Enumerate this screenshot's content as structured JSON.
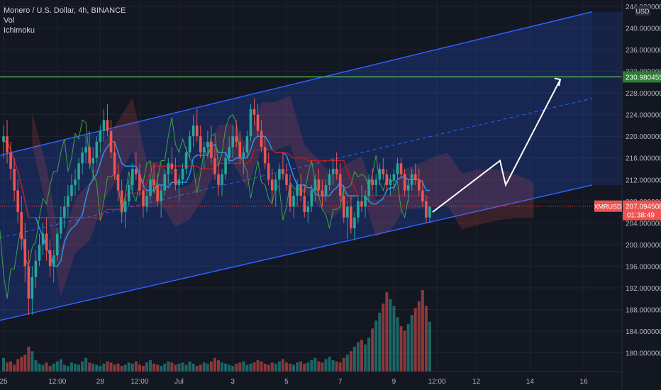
{
  "legend": {
    "symbol_line": "Monero / U.S. Dollar, 4h, BINANCE",
    "indicator_1": "Vol",
    "indicator_2": "Ichimoku"
  },
  "price_badges": {
    "currency": "USD",
    "target_price": "230.980455",
    "ticker": "XMRUSD",
    "last_price": "207.094508",
    "countdown": "01:38:49"
  },
  "colors": {
    "background": "#131722",
    "bull": "#26a69a",
    "bear": "#ef5350",
    "channel_line": "#2962ff",
    "target_line": "#4caf50",
    "tenkan": "#2196f3",
    "kijun": "#b71c1c",
    "chikou": "#43a047",
    "arrow": "#ffffff"
  },
  "chart_data": {
    "type": "candlestick",
    "y_ticks": [
      "180.000000",
      "184.000000",
      "188.000000",
      "192.000000",
      "196.000000",
      "200.000000",
      "204.000000",
      "208.000000",
      "212.000000",
      "216.000000",
      "220.000000",
      "224.000000",
      "228.000000",
      "232.000000",
      "236.000000",
      "240.000000",
      "244.000000"
    ],
    "x_ticks": [
      {
        "label": "25",
        "bar": 0
      },
      {
        "label": "12:00",
        "bar": 15
      },
      {
        "label": "28",
        "bar": 27
      },
      {
        "label": "12:00",
        "bar": 38
      },
      {
        "label": "Jul",
        "bar": 49
      },
      {
        "label": "3",
        "bar": 64
      },
      {
        "label": "5",
        "bar": 79
      },
      {
        "label": "7",
        "bar": 94
      },
      {
        "label": "9",
        "bar": 109
      },
      {
        "label": "12:00",
        "bar": 121
      },
      {
        "label": "12",
        "bar": 132
      },
      {
        "label": "14",
        "bar": 147
      },
      {
        "label": "16",
        "bar": 162
      },
      {
        "label": "18",
        "bar": 177
      }
    ],
    "bars_total_visible": 181,
    "candles": [
      [
        219,
        222,
        216,
        220
      ],
      [
        220,
        223,
        215,
        217
      ],
      [
        217,
        219,
        212,
        214
      ],
      [
        214,
        216,
        208,
        210
      ],
      [
        210,
        212,
        204,
        206
      ],
      [
        206,
        209,
        199,
        201
      ],
      [
        201,
        204,
        193,
        196
      ],
      [
        196,
        199,
        187,
        190
      ],
      [
        190,
        196,
        187,
        194
      ],
      [
        194,
        199,
        192,
        197
      ],
      [
        197,
        202,
        196,
        200
      ],
      [
        200,
        204,
        198,
        202
      ],
      [
        202,
        205,
        197,
        199
      ],
      [
        199,
        201,
        194,
        196
      ],
      [
        196,
        199,
        193,
        198
      ],
      [
        198,
        203,
        197,
        202
      ],
      [
        202,
        207,
        201,
        205
      ],
      [
        205,
        209,
        203,
        207
      ],
      [
        207,
        211,
        205,
        209
      ],
      [
        209,
        213,
        208,
        211
      ],
      [
        211,
        214,
        209,
        212
      ],
      [
        212,
        216,
        210,
        215
      ],
      [
        215,
        218,
        213,
        217
      ],
      [
        217,
        220,
        215,
        218
      ],
      [
        218,
        221,
        214,
        215
      ],
      [
        215,
        218,
        212,
        216
      ],
      [
        216,
        220,
        215,
        219
      ],
      [
        219,
        222,
        217,
        221
      ],
      [
        221,
        225,
        219,
        223
      ],
      [
        223,
        226,
        220,
        221
      ],
      [
        221,
        223,
        216,
        217
      ],
      [
        217,
        219,
        212,
        213
      ],
      [
        213,
        215,
        208,
        210
      ],
      [
        210,
        212,
        204,
        206
      ],
      [
        206,
        209,
        203,
        208
      ],
      [
        208,
        212,
        207,
        211
      ],
      [
        211,
        215,
        210,
        214
      ],
      [
        214,
        217,
        212,
        213
      ],
      [
        213,
        215,
        209,
        210
      ],
      [
        210,
        212,
        205,
        207
      ],
      [
        207,
        210,
        206,
        209
      ],
      [
        209,
        213,
        208,
        212
      ],
      [
        212,
        215,
        210,
        211
      ],
      [
        211,
        213,
        207,
        208
      ],
      [
        208,
        211,
        205,
        210
      ],
      [
        210,
        214,
        209,
        213
      ],
      [
        213,
        216,
        211,
        215
      ],
      [
        215,
        218,
        213,
        214
      ],
      [
        214,
        216,
        210,
        211
      ],
      [
        211,
        213,
        208,
        212
      ],
      [
        212,
        215,
        211,
        214
      ],
      [
        214,
        218,
        213,
        217
      ],
      [
        217,
        221,
        216,
        220
      ],
      [
        220,
        224,
        218,
        222
      ],
      [
        222,
        225,
        219,
        220
      ],
      [
        220,
        222,
        216,
        217
      ],
      [
        217,
        219,
        214,
        218
      ],
      [
        218,
        221,
        216,
        219
      ],
      [
        219,
        222,
        215,
        216
      ],
      [
        216,
        218,
        212,
        213
      ],
      [
        213,
        215,
        209,
        211
      ],
      [
        211,
        214,
        209,
        213
      ],
      [
        213,
        217,
        212,
        216
      ],
      [
        216,
        220,
        215,
        218
      ],
      [
        218,
        222,
        216,
        220
      ],
      [
        220,
        223,
        218,
        219
      ],
      [
        219,
        221,
        215,
        216
      ],
      [
        216,
        218,
        213,
        217
      ],
      [
        217,
        221,
        216,
        220
      ],
      [
        220,
        226,
        219,
        225
      ],
      [
        225,
        227,
        222,
        224
      ],
      [
        224,
        226,
        220,
        221
      ],
      [
        221,
        223,
        217,
        218
      ],
      [
        218,
        220,
        214,
        215
      ],
      [
        215,
        217,
        211,
        212
      ],
      [
        212,
        214,
        208,
        210
      ],
      [
        210,
        213,
        207,
        212
      ],
      [
        212,
        215,
        210,
        214
      ],
      [
        214,
        217,
        212,
        213
      ],
      [
        213,
        215,
        210,
        211
      ],
      [
        211,
        213,
        206,
        207
      ],
      [
        207,
        210,
        205,
        209
      ],
      [
        209,
        212,
        207,
        211
      ],
      [
        211,
        213,
        208,
        209
      ],
      [
        209,
        211,
        205,
        206
      ],
      [
        206,
        208,
        204,
        207
      ],
      [
        207,
        211,
        206,
        210
      ],
      [
        210,
        213,
        208,
        212
      ],
      [
        212,
        214,
        209,
        210
      ],
      [
        210,
        212,
        207,
        209
      ],
      [
        209,
        212,
        208,
        211
      ],
      [
        211,
        214,
        210,
        213
      ],
      [
        213,
        216,
        211,
        214
      ],
      [
        214,
        217,
        212,
        213
      ],
      [
        213,
        215,
        208,
        209
      ],
      [
        209,
        211,
        204,
        205
      ],
      [
        205,
        208,
        201,
        207
      ],
      [
        207,
        209,
        202,
        203
      ],
      [
        203,
        206,
        201,
        205
      ],
      [
        205,
        209,
        204,
        208
      ],
      [
        208,
        211,
        206,
        207
      ],
      [
        207,
        210,
        205,
        209
      ],
      [
        209,
        213,
        208,
        212
      ],
      [
        212,
        214,
        210,
        211
      ],
      [
        211,
        213,
        209,
        212
      ],
      [
        212,
        215,
        211,
        214
      ],
      [
        214,
        216,
        212,
        213
      ],
      [
        213,
        214,
        210,
        211
      ],
      [
        211,
        213,
        209,
        212
      ],
      [
        212,
        214,
        210,
        213
      ],
      [
        213,
        216,
        212,
        215
      ],
      [
        215,
        216,
        212,
        213
      ],
      [
        213,
        214,
        209,
        210
      ],
      [
        210,
        212,
        208,
        211
      ],
      [
        211,
        214,
        210,
        213
      ],
      [
        213,
        215,
        211,
        212
      ],
      [
        212,
        214,
        209,
        210
      ],
      [
        210,
        212,
        207,
        208
      ],
      [
        208,
        209,
        204,
        205
      ],
      [
        205,
        207,
        204,
        207
      ]
    ],
    "volume": [
      12,
      8,
      9,
      6,
      11,
      13,
      15,
      22,
      18,
      10,
      7,
      6,
      8,
      5,
      7,
      9,
      11,
      6,
      5,
      8,
      7,
      6,
      9,
      12,
      8,
      7,
      6,
      5,
      7,
      9,
      8,
      6,
      7,
      5,
      6,
      8,
      7,
      9,
      6,
      5,
      8,
      10,
      7,
      6,
      5,
      7,
      9,
      8,
      6,
      7,
      8,
      6,
      9,
      7,
      5,
      6,
      8,
      7,
      9,
      12,
      10,
      8,
      7,
      6,
      5,
      7,
      8,
      9,
      6,
      7,
      8,
      10,
      9,
      7,
      6,
      8,
      7,
      9,
      11,
      8,
      7,
      6,
      8,
      9,
      7,
      8,
      10,
      12,
      9,
      8,
      11,
      13,
      10,
      9,
      8,
      12,
      15,
      18,
      22,
      26,
      28,
      24,
      30,
      38,
      45,
      52,
      60,
      70,
      64,
      58,
      48,
      40,
      36,
      42,
      50,
      56,
      62,
      72,
      58,
      44
    ],
    "ichimoku_note": "",
    "target": 230.980455,
    "last": 207.094508,
    "ylim": [
      178,
      245
    ]
  }
}
